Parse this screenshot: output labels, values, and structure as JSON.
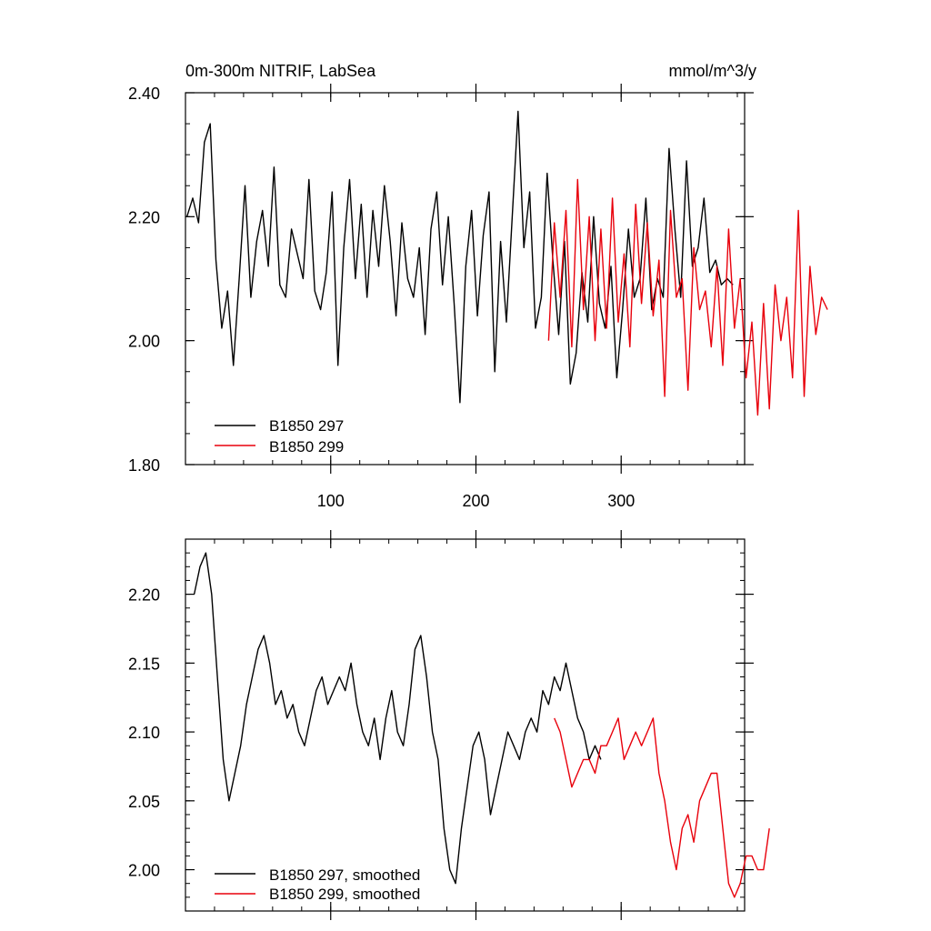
{
  "header": {
    "title": "0m-300m NITRIF, LabSea",
    "units": "mmol/m^3/y"
  },
  "colors": {
    "series_a": "#000000",
    "series_b": "#e8000b",
    "axis": "#000000",
    "background": "#ffffff"
  },
  "chart_data": [
    {
      "type": "line",
      "title": "0m-300m NITRIF, LabSea",
      "units": "mmol/m^3/y",
      "xlim": [
        0,
        385
      ],
      "ylim": [
        1.8,
        2.4
      ],
      "xticks": [
        100,
        200,
        300
      ],
      "xtick_labels": [
        "100",
        "200",
        "300"
      ],
      "yticks": [
        1.8,
        2.0,
        2.2,
        2.4
      ],
      "ytick_labels": [
        "1.80",
        "2.00",
        "2.20",
        "2.40"
      ],
      "legend_position": "bottom-left",
      "grid": false,
      "series": [
        {
          "name": "B1850 297",
          "color": "#000000",
          "x_start": 1,
          "x_step": 4,
          "values": [
            2.2,
            2.23,
            2.19,
            2.32,
            2.35,
            2.13,
            2.02,
            2.08,
            1.96,
            2.1,
            2.25,
            2.07,
            2.16,
            2.21,
            2.12,
            2.28,
            2.09,
            2.07,
            2.18,
            2.14,
            2.1,
            2.26,
            2.08,
            2.05,
            2.11,
            2.24,
            1.96,
            2.15,
            2.26,
            2.1,
            2.22,
            2.07,
            2.21,
            2.12,
            2.25,
            2.16,
            2.04,
            2.19,
            2.1,
            2.07,
            2.15,
            2.01,
            2.18,
            2.24,
            2.09,
            2.2,
            2.06,
            1.9,
            2.12,
            2.21,
            2.04,
            2.17,
            2.24,
            1.95,
            2.16,
            2.03,
            2.2,
            2.37,
            2.15,
            2.24,
            2.02,
            2.07,
            2.27,
            2.13,
            2.01,
            2.16,
            1.93,
            1.98,
            2.11,
            2.03,
            2.2,
            2.06,
            2.02,
            2.12,
            1.94,
            2.05,
            2.18,
            2.07,
            2.1,
            2.23,
            2.05,
            2.1,
            2.07,
            2.31,
            2.18,
            2.07,
            2.29,
            2.12,
            2.15,
            2.23,
            2.11,
            2.13,
            2.09,
            2.1,
            2.09
          ]
        },
        {
          "name": "B1850 299",
          "color": "#e8000b",
          "x_start": 250,
          "x_step": 4,
          "values": [
            2.0,
            2.19,
            2.07,
            2.21,
            1.99,
            2.26,
            2.05,
            2.2,
            2.0,
            2.18,
            2.02,
            2.23,
            2.03,
            2.14,
            1.99,
            2.22,
            2.06,
            2.19,
            2.04,
            2.13,
            1.91,
            2.21,
            2.07,
            2.1,
            1.92,
            2.15,
            2.05,
            2.08,
            1.99,
            2.12,
            1.96,
            2.18,
            2.02,
            2.1,
            1.94,
            2.03,
            1.88,
            2.06,
            1.89,
            2.09,
            2.0,
            2.07,
            1.94,
            2.21,
            1.91,
            2.12,
            2.01,
            2.07,
            2.05
          ]
        }
      ]
    },
    {
      "type": "line",
      "title": "",
      "xlim": [
        0,
        385
      ],
      "ylim": [
        1.97,
        2.24
      ],
      "xticks": [
        100,
        200,
        300
      ],
      "yticks": [
        2.0,
        2.05,
        2.1,
        2.15,
        2.2
      ],
      "ytick_labels": [
        "2.00",
        "2.05",
        "2.10",
        "2.15",
        "2.20"
      ],
      "legend_position": "bottom-left",
      "grid": false,
      "series": [
        {
          "name": "B1850 297, smoothed",
          "color": "#000000",
          "x_start": 6,
          "x_step": 4,
          "values": [
            2.2,
            2.22,
            2.23,
            2.2,
            2.14,
            2.08,
            2.05,
            2.07,
            2.09,
            2.12,
            2.14,
            2.16,
            2.17,
            2.15,
            2.12,
            2.13,
            2.11,
            2.12,
            2.1,
            2.09,
            2.11,
            2.13,
            2.14,
            2.12,
            2.13,
            2.14,
            2.13,
            2.15,
            2.12,
            2.1,
            2.09,
            2.11,
            2.08,
            2.11,
            2.13,
            2.1,
            2.09,
            2.12,
            2.16,
            2.17,
            2.14,
            2.1,
            2.08,
            2.03,
            2.0,
            1.99,
            2.03,
            2.06,
            2.09,
            2.1,
            2.08,
            2.04,
            2.06,
            2.08,
            2.1,
            2.09,
            2.08,
            2.1,
            2.11,
            2.1,
            2.13,
            2.12,
            2.14,
            2.13,
            2.15,
            2.13,
            2.11,
            2.1,
            2.08,
            2.09,
            2.08
          ]
        },
        {
          "name": "B1850 299, smoothed",
          "color": "#e8000b",
          "x_start": 254,
          "x_step": 4,
          "values": [
            2.11,
            2.1,
            2.08,
            2.06,
            2.07,
            2.08,
            2.08,
            2.07,
            2.09,
            2.09,
            2.1,
            2.11,
            2.08,
            2.09,
            2.1,
            2.09,
            2.1,
            2.11,
            2.07,
            2.05,
            2.02,
            2.0,
            2.03,
            2.04,
            2.02,
            2.05,
            2.06,
            2.07,
            2.07,
            2.03,
            1.99,
            1.98,
            1.99,
            2.01,
            2.01,
            2.0,
            2.0,
            2.03
          ]
        }
      ]
    }
  ]
}
